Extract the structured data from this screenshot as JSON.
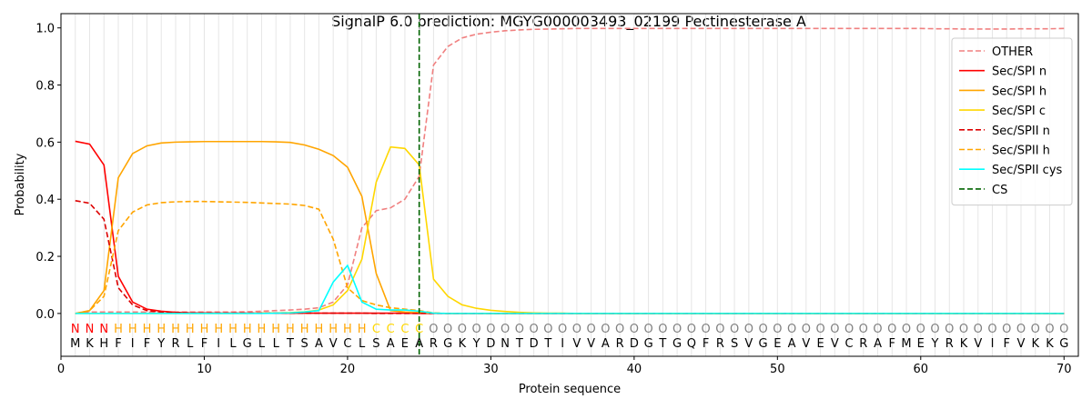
{
  "chart_data": {
    "type": "line",
    "title": "SignalP 6.0 prediction: MGYG000003493_02199 Pectinesterase A",
    "xlabel": "Protein sequence",
    "ylabel": "Probability",
    "xlim": [
      0,
      71
    ],
    "ylim": [
      -0.15,
      1.05
    ],
    "x_ticks": [
      0,
      10,
      20,
      30,
      40,
      50,
      60,
      70
    ],
    "y_ticks": [
      0.0,
      0.2,
      0.4,
      0.6,
      0.8,
      1.0
    ],
    "y_tick_labels": [
      "0.0",
      "0.2",
      "0.4",
      "0.6",
      "0.8",
      "1.0"
    ],
    "grid": "vertical lines at each residue",
    "legend_position": "top-right",
    "sequence": [
      "M",
      "K",
      "H",
      "F",
      "I",
      "F",
      "Y",
      "R",
      "L",
      "F",
      "I",
      "L",
      "G",
      "L",
      "L",
      "T",
      "S",
      "A",
      "V",
      "C",
      "L",
      "S",
      "A",
      "E",
      "A",
      "R",
      "G",
      "K",
      "Y",
      "D",
      "N",
      "T",
      "D",
      "T",
      "I",
      "V",
      "V",
      "A",
      "R",
      "D",
      "G",
      "T",
      "G",
      "Q",
      "F",
      "R",
      "S",
      "V",
      "G",
      "E",
      "A",
      "V",
      "E",
      "V",
      "C",
      "R",
      "A",
      "F",
      "M",
      "E",
      "Y",
      "R",
      "K",
      "V",
      "I",
      "F",
      "V",
      "K",
      "K",
      "G"
    ],
    "region_labels": [
      "N",
      "N",
      "N",
      "H",
      "H",
      "H",
      "H",
      "H",
      "H",
      "H",
      "H",
      "H",
      "H",
      "H",
      "H",
      "H",
      "H",
      "H",
      "H",
      "H",
      "H",
      "C",
      "C",
      "C",
      "C",
      "O",
      "O",
      "O",
      "O",
      "O",
      "O",
      "O",
      "O",
      "O",
      "O",
      "O",
      "O",
      "O",
      "O",
      "O",
      "O",
      "O",
      "O",
      "O",
      "O",
      "O",
      "O",
      "O",
      "O",
      "O",
      "O",
      "O",
      "O",
      "O",
      "O",
      "O",
      "O",
      "O",
      "O",
      "O",
      "O",
      "O",
      "O",
      "O",
      "O",
      "O",
      "O",
      "O",
      "O",
      "O"
    ],
    "region_colors": {
      "N": "#ff0000",
      "H": "#ffa500",
      "C": "#ffd700",
      "O": "#808080"
    },
    "cleavage_site": 25,
    "series": [
      {
        "name": "OTHER",
        "color": "#f08080",
        "dash": "dashed",
        "values": [
          0.0,
          0.005,
          0.005,
          0.005,
          0.005,
          0.005,
          0.005,
          0.005,
          0.005,
          0.005,
          0.005,
          0.005,
          0.006,
          0.008,
          0.01,
          0.012,
          0.015,
          0.02,
          0.04,
          0.1,
          0.3,
          0.36,
          0.37,
          0.4,
          0.48,
          0.87,
          0.935,
          0.965,
          0.978,
          0.985,
          0.99,
          0.993,
          0.995,
          0.996,
          0.997,
          0.998,
          0.998,
          0.998,
          0.998,
          0.998,
          0.998,
          0.998,
          0.998,
          0.998,
          0.998,
          0.998,
          0.998,
          0.998,
          0.998,
          0.998,
          0.998,
          0.998,
          0.998,
          0.998,
          0.998,
          0.998,
          0.998,
          0.998,
          0.998,
          0.998,
          0.997,
          0.997,
          0.996,
          0.996,
          0.996,
          0.996,
          0.997,
          0.997,
          0.997,
          0.998
        ]
      },
      {
        "name": "Sec/SPI n",
        "color": "#ff0000",
        "dash": "solid",
        "values": [
          0.603,
          0.593,
          0.52,
          0.13,
          0.04,
          0.015,
          0.008,
          0.004,
          0.002,
          0.002,
          0.001,
          0.001,
          0.001,
          0.001,
          0.001,
          0.001,
          0.001,
          0.001,
          0.001,
          0.001,
          0.001,
          0.001,
          0.001,
          0.001,
          0.0,
          0.0,
          0.0,
          0.0,
          0.0,
          0.0,
          0.0,
          0.0,
          0.0,
          0.0,
          0.0,
          0.0,
          0.0,
          0.0,
          0.0,
          0.0,
          0.0,
          0.0,
          0.0,
          0.0,
          0.0,
          0.0,
          0.0,
          0.0,
          0.0,
          0.0,
          0.0,
          0.0,
          0.0,
          0.0,
          0.0,
          0.0,
          0.0,
          0.0,
          0.0,
          0.0,
          0.0,
          0.0,
          0.0,
          0.0,
          0.0,
          0.0,
          0.0,
          0.0,
          0.0,
          0.0
        ]
      },
      {
        "name": "Sec/SPI h",
        "color": "#ffa500",
        "dash": "solid",
        "values": [
          0.0,
          0.01,
          0.08,
          0.475,
          0.56,
          0.587,
          0.597,
          0.6,
          0.601,
          0.602,
          0.602,
          0.602,
          0.602,
          0.602,
          0.601,
          0.599,
          0.59,
          0.575,
          0.553,
          0.512,
          0.41,
          0.14,
          0.01,
          0.005,
          0.003,
          0.001,
          0.0,
          0.0,
          0.0,
          0.0,
          0.0,
          0.0,
          0.0,
          0.0,
          0.0,
          0.0,
          0.0,
          0.0,
          0.0,
          0.0,
          0.0,
          0.0,
          0.0,
          0.0,
          0.0,
          0.0,
          0.0,
          0.0,
          0.0,
          0.0,
          0.0,
          0.0,
          0.0,
          0.0,
          0.0,
          0.0,
          0.0,
          0.0,
          0.0,
          0.0,
          0.0,
          0.0,
          0.0,
          0.0,
          0.0,
          0.0,
          0.0,
          0.0,
          0.0,
          0.0
        ]
      },
      {
        "name": "Sec/SPI c",
        "color": "#ffd700",
        "dash": "solid",
        "values": [
          0.0,
          0.0,
          0.0,
          0.0,
          0.0,
          0.0,
          0.0,
          0.0,
          0.0,
          0.0,
          0.0,
          0.0,
          0.0,
          0.001,
          0.002,
          0.003,
          0.006,
          0.012,
          0.03,
          0.08,
          0.19,
          0.46,
          0.583,
          0.578,
          0.52,
          0.12,
          0.06,
          0.03,
          0.018,
          0.011,
          0.007,
          0.004,
          0.002,
          0.001,
          0.001,
          0.0,
          0.0,
          0.0,
          0.0,
          0.0,
          0.0,
          0.0,
          0.0,
          0.0,
          0.0,
          0.0,
          0.0,
          0.0,
          0.0,
          0.0,
          0.0,
          0.0,
          0.0,
          0.0,
          0.0,
          0.0,
          0.0,
          0.0,
          0.0,
          0.0,
          0.0,
          0.0,
          0.0,
          0.0,
          0.0,
          0.0,
          0.0,
          0.0,
          0.0,
          0.0
        ]
      },
      {
        "name": "Sec/SPII n",
        "color": "#dd0000",
        "dash": "dashed",
        "values": [
          0.395,
          0.386,
          0.33,
          0.09,
          0.03,
          0.01,
          0.005,
          0.003,
          0.002,
          0.001,
          0.001,
          0.001,
          0.001,
          0.001,
          0.001,
          0.001,
          0.001,
          0.001,
          0.001,
          0.001,
          0.001,
          0.0,
          0.0,
          0.0,
          0.0,
          0.0,
          0.0,
          0.0,
          0.0,
          0.0,
          0.0,
          0.0,
          0.0,
          0.0,
          0.0,
          0.0,
          0.0,
          0.0,
          0.0,
          0.0,
          0.0,
          0.0,
          0.0,
          0.0,
          0.0,
          0.0,
          0.0,
          0.0,
          0.0,
          0.0,
          0.0,
          0.0,
          0.0,
          0.0,
          0.0,
          0.0,
          0.0,
          0.0,
          0.0,
          0.0,
          0.0,
          0.0,
          0.0,
          0.0,
          0.0,
          0.0,
          0.0,
          0.0,
          0.0,
          0.0
        ]
      },
      {
        "name": "Sec/SPII h",
        "color": "#ffa500",
        "dash": "dashed",
        "values": [
          0.0,
          0.01,
          0.06,
          0.29,
          0.355,
          0.38,
          0.388,
          0.391,
          0.392,
          0.392,
          0.391,
          0.39,
          0.389,
          0.387,
          0.385,
          0.383,
          0.378,
          0.365,
          0.26,
          0.09,
          0.045,
          0.03,
          0.02,
          0.015,
          0.01,
          0.002,
          0.0,
          0.0,
          0.0,
          0.0,
          0.0,
          0.0,
          0.0,
          0.0,
          0.0,
          0.0,
          0.0,
          0.0,
          0.0,
          0.0,
          0.0,
          0.0,
          0.0,
          0.0,
          0.0,
          0.0,
          0.0,
          0.0,
          0.0,
          0.0,
          0.0,
          0.0,
          0.0,
          0.0,
          0.0,
          0.0,
          0.0,
          0.0,
          0.0,
          0.0,
          0.0,
          0.0,
          0.0,
          0.0,
          0.0,
          0.0,
          0.0,
          0.0,
          0.0,
          0.0
        ]
      },
      {
        "name": "Sec/SPII cys",
        "color": "#00ffff",
        "dash": "solid",
        "values": [
          0.0,
          0.0,
          0.0,
          0.0,
          0.0,
          0.0,
          0.0,
          0.0,
          0.0,
          0.0,
          0.0,
          0.0,
          0.0,
          0.0,
          0.001,
          0.002,
          0.005,
          0.01,
          0.11,
          0.168,
          0.04,
          0.015,
          0.012,
          0.012,
          0.008,
          0.001,
          0.0,
          0.0,
          0.0,
          0.0,
          0.0,
          0.0,
          0.0,
          0.0,
          0.0,
          0.0,
          0.0,
          0.0,
          0.0,
          0.0,
          0.0,
          0.0,
          0.0,
          0.0,
          0.0,
          0.0,
          0.0,
          0.0,
          0.0,
          0.0,
          0.0,
          0.0,
          0.0,
          0.0,
          0.0,
          0.0,
          0.0,
          0.0,
          0.0,
          0.0,
          0.0,
          0.0,
          0.0,
          0.0,
          0.0,
          0.0,
          0.0,
          0.0,
          0.0,
          0.0
        ]
      }
    ],
    "cs_legend": {
      "name": "CS",
      "color": "#006400",
      "dash": "dashed"
    }
  }
}
